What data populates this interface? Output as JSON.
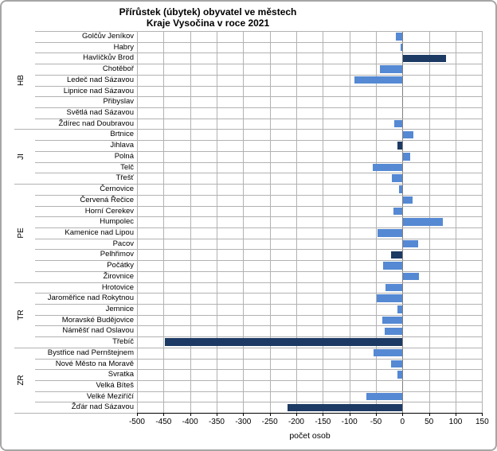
{
  "title": {
    "line1": "Přírůstek (úbytek) obyvatel ve městech",
    "line2": "Kraje Vysočina v roce 2021"
  },
  "chart_data": {
    "type": "bar",
    "orientation": "horizontal",
    "title": "Přírůstek (úbytek) obyvatel ve městech Kraje Vysočina v roce 2021",
    "xlabel": "počet osob",
    "xlim": [
      -500,
      150
    ],
    "x_ticks": [
      -500,
      -450,
      -400,
      -350,
      -300,
      -250,
      -200,
      -150,
      -100,
      -50,
      0,
      50,
      100,
      150
    ],
    "grid": true,
    "legend": "none",
    "colors": {
      "town_bar": "#5589d3",
      "district_capital_bar": "#1c3a64",
      "gridline": "#b2b2b2",
      "zero_line": "#808080",
      "axis": "#000000"
    },
    "groups": [
      {
        "district": "HB",
        "towns": [
          {
            "name": "Golčův Jeníkov",
            "value": -13,
            "capital": false
          },
          {
            "name": "Habry",
            "value": -3,
            "capital": false
          },
          {
            "name": "Havlíčkův Brod",
            "value": 80,
            "capital": true
          },
          {
            "name": "Chotěboř",
            "value": -42,
            "capital": false
          },
          {
            "name": "Ledeč nad Sázavou",
            "value": -91,
            "capital": false
          },
          {
            "name": "Lipnice nad Sázavou",
            "value": 0,
            "capital": false
          },
          {
            "name": "Přibyslav",
            "value": 0,
            "capital": false
          },
          {
            "name": "Světlá nad Sázavou",
            "value": 0,
            "capital": false
          },
          {
            "name": "Ždírec nad Doubravou",
            "value": -16,
            "capital": false
          }
        ]
      },
      {
        "district": "JI",
        "towns": [
          {
            "name": "Brtnice",
            "value": 19,
            "capital": false
          },
          {
            "name": "Jihlava",
            "value": -9,
            "capital": true
          },
          {
            "name": "Polná",
            "value": 13,
            "capital": false
          },
          {
            "name": "Telč",
            "value": -56,
            "capital": false
          },
          {
            "name": "Třešť",
            "value": -20,
            "capital": false
          }
        ]
      },
      {
        "district": "PE",
        "towns": [
          {
            "name": "Černovice",
            "value": -7,
            "capital": false
          },
          {
            "name": "Červená Řečice",
            "value": 18,
            "capital": false
          },
          {
            "name": "Horní Cerekev",
            "value": -17,
            "capital": false
          },
          {
            "name": "Humpolec",
            "value": 75,
            "capital": false
          },
          {
            "name": "Kamenice nad Lipou",
            "value": -47,
            "capital": false
          },
          {
            "name": "Pacov",
            "value": 28,
            "capital": false
          },
          {
            "name": "Pelhřimov",
            "value": -21,
            "capital": true
          },
          {
            "name": "Počátky",
            "value": -37,
            "capital": false
          },
          {
            "name": "Žirovnice",
            "value": 30,
            "capital": false
          }
        ]
      },
      {
        "district": "TR",
        "towns": [
          {
            "name": "Hrotovice",
            "value": -32,
            "capital": false
          },
          {
            "name": "Jaroměřice nad Rokytnou",
            "value": -48,
            "capital": false
          },
          {
            "name": "Jemnice",
            "value": -9,
            "capital": false
          },
          {
            "name": "Moravské Budějovice",
            "value": -38,
            "capital": false
          },
          {
            "name": "Náměšť nad Oslavou",
            "value": -34,
            "capital": false
          },
          {
            "name": "Třebíč",
            "value": -447,
            "capital": true
          }
        ]
      },
      {
        "district": "ZR",
        "towns": [
          {
            "name": "Bystřice nad Pernštejnem",
            "value": -55,
            "capital": false
          },
          {
            "name": "Nové Město na Moravě",
            "value": -21,
            "capital": false
          },
          {
            "name": "Svratka",
            "value": -10,
            "capital": false
          },
          {
            "name": "Velká Bíteš",
            "value": 0,
            "capital": false
          },
          {
            "name": "Velké Meziříčí",
            "value": -68,
            "capital": false
          },
          {
            "name": "Žďár nad Sázavou",
            "value": -216,
            "capital": true
          }
        ]
      }
    ]
  }
}
